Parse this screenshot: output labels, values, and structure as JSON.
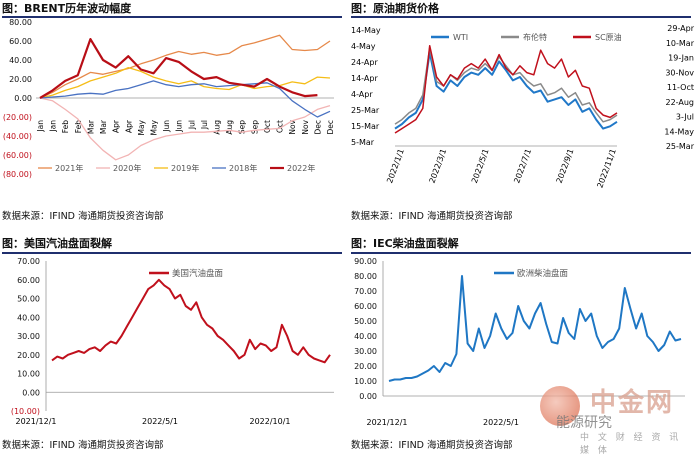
{
  "source_text": "数据来源：IFIND   海通期货投资咨询部",
  "watermark": {
    "big": "中金网",
    "cn": "能源研究",
    "small": "中 文 财 经 资 讯 媒 体"
  },
  "chart_data": [
    {
      "id": "brent",
      "type": "line",
      "title": "图：BRENT历年波动幅度",
      "ylim": [
        -80,
        80
      ],
      "yticks": [
        "80.00",
        "60.00",
        "40.00",
        "20.00",
        "0.00",
        "(20.00)",
        "(40.00)",
        "(60.00)",
        "(80.00)"
      ],
      "categories": [
        "Jan",
        "Jan",
        "Feb",
        "Feb",
        "Mar",
        "Mar",
        "Apr",
        "Apr",
        "May",
        "May",
        "Jun",
        "Jun",
        "Jul",
        "Jul",
        "Aug",
        "Aug",
        "Sep",
        "Sep",
        "Oct",
        "Oct",
        "Nov",
        "Nov",
        "Dec",
        "Dec"
      ],
      "legend": [
        "2021年",
        "2020年",
        "2019年",
        "2018年",
        "2022年"
      ],
      "series": [
        {
          "name": "2021年",
          "color": "#e6894a",
          "width": 1.3,
          "values": [
            0,
            6,
            14,
            20,
            27,
            25,
            28,
            31,
            36,
            40,
            45,
            49,
            46,
            48,
            45,
            47,
            55,
            58,
            62,
            66,
            51,
            50,
            51,
            60
          ]
        },
        {
          "name": "2020年",
          "color": "#f2b4b4",
          "width": 1.3,
          "values": [
            0,
            -3,
            -12,
            -22,
            -42,
            -55,
            -65,
            -60,
            -50,
            -44,
            -40,
            -38,
            -36,
            -36,
            -35,
            -34,
            -36,
            -34,
            -33,
            -32,
            -24,
            -20,
            -12,
            -8
          ]
        },
        {
          "name": "2019年",
          "color": "#f5bd17",
          "width": 1.3,
          "values": [
            0,
            3,
            8,
            12,
            18,
            22,
            26,
            32,
            28,
            22,
            18,
            15,
            18,
            12,
            10,
            9,
            14,
            10,
            12,
            13,
            17,
            15,
            22,
            21
          ]
        },
        {
          "name": "2018年",
          "color": "#4a72c2",
          "width": 1.3,
          "values": [
            0,
            1,
            2,
            4,
            5,
            4,
            8,
            10,
            14,
            18,
            14,
            12,
            14,
            15,
            12,
            13,
            14,
            15,
            16,
            10,
            -3,
            -12,
            -20,
            -14
          ]
        },
        {
          "name": "2022年",
          "color": "#b80e16",
          "width": 2.2,
          "values": [
            0,
            8,
            18,
            24,
            62,
            40,
            32,
            44,
            30,
            26,
            42,
            38,
            28,
            20,
            22,
            16,
            14,
            12,
            20,
            12,
            6,
            2,
            3,
            null
          ]
        }
      ]
    },
    {
      "id": "crude",
      "type": "line",
      "title": "图：原油期货价格",
      "left_ticks": [
        "14-May",
        "4-May",
        "24-Apr",
        "14-Apr",
        "4-Apr",
        "25-Mar",
        "15-Mar",
        "5-Mar"
      ],
      "right_ticks": [
        "29-Apr",
        "10-Mar",
        "19-Jan",
        "30-Nov",
        "11-Oct",
        "22-Aug",
        "3-Jul",
        "14-May",
        "25-Mar"
      ],
      "x_ticks": [
        "2022/1/1",
        "2022/3/1",
        "2022/5/1",
        "2022/7/1",
        "2022/9/1",
        "2022/11/1"
      ],
      "legend": [
        "WTI",
        "布伦特",
        "SC原油"
      ],
      "series": [
        {
          "name": "WTI",
          "color": "#2078c8",
          "width": 2,
          "values": [
            0.12,
            0.16,
            0.22,
            0.26,
            0.38,
            0.8,
            0.5,
            0.45,
            0.55,
            0.5,
            0.58,
            0.62,
            0.6,
            0.66,
            0.6,
            0.72,
            0.64,
            0.55,
            0.58,
            0.5,
            0.44,
            0.46,
            0.36,
            0.38,
            0.4,
            0.33,
            0.38,
            0.27,
            0.3,
            0.2,
            0.12,
            0.14,
            0.18
          ]
        },
        {
          "name": "布伦特",
          "color": "#8a8a8a",
          "width": 1.5,
          "values": [
            0.16,
            0.2,
            0.26,
            0.3,
            0.42,
            0.84,
            0.54,
            0.5,
            0.6,
            0.55,
            0.62,
            0.66,
            0.64,
            0.7,
            0.64,
            0.76,
            0.68,
            0.6,
            0.62,
            0.55,
            0.5,
            0.52,
            0.42,
            0.44,
            0.48,
            0.4,
            0.44,
            0.33,
            0.35,
            0.26,
            0.18,
            0.2,
            0.24
          ]
        },
        {
          "name": "SC原油",
          "color": "#c0101c",
          "width": 1.5,
          "values": [
            0.08,
            0.12,
            0.16,
            0.2,
            0.3,
            0.86,
            0.58,
            0.5,
            0.6,
            0.56,
            0.66,
            0.7,
            0.66,
            0.74,
            0.64,
            0.78,
            0.66,
            0.6,
            0.68,
            0.62,
            0.6,
            0.82,
            0.7,
            0.66,
            0.74,
            0.58,
            0.64,
            0.5,
            0.48,
            0.3,
            0.24,
            0.22,
            0.26
          ]
        }
      ]
    },
    {
      "id": "gasoline",
      "type": "line",
      "title": "图：美国汽油盘面裂解",
      "ylim": [
        -10,
        70
      ],
      "yticks": [
        "70.00",
        "60.00",
        "50.00",
        "40.00",
        "30.00",
        "20.00",
        "10.00",
        "0.00",
        "(10.00)"
      ],
      "x_ticks": [
        "2021/12/1",
        "2022/5/1",
        "2022/10/1"
      ],
      "legend": [
        "美国汽油盘面"
      ],
      "series": [
        {
          "name": "美国汽油盘面",
          "color": "#c0101c",
          "width": 2,
          "values": [
            17,
            19,
            18,
            20,
            21,
            22,
            21,
            23,
            24,
            22,
            25,
            27,
            26,
            30,
            35,
            40,
            45,
            50,
            55,
            57,
            60,
            57,
            55,
            50,
            52,
            46,
            44,
            48,
            40,
            36,
            34,
            30,
            28,
            25,
            22,
            18,
            20,
            28,
            23,
            26,
            25,
            22,
            24,
            36,
            30,
            22,
            20,
            24,
            20,
            18,
            17,
            16,
            20
          ]
        }
      ]
    },
    {
      "id": "diesel",
      "type": "line",
      "title": "图：IEC柴油盘面裂解",
      "ylim": [
        0,
        90
      ],
      "yticks": [
        "90.00",
        "80.00",
        "70.00",
        "60.00",
        "50.00",
        "40.00",
        "30.00",
        "20.00",
        "10.00",
        "0.00"
      ],
      "x_ticks": [
        "2021/12/1",
        "2022/5/1"
      ],
      "legend": [
        "欧洲柴油盘面"
      ],
      "series": [
        {
          "name": "欧洲柴油盘面",
          "color": "#1f77c4",
          "width": 2,
          "values": [
            10,
            11,
            11,
            12,
            12,
            13,
            15,
            17,
            20,
            16,
            22,
            20,
            28,
            80,
            35,
            30,
            45,
            32,
            40,
            55,
            45,
            38,
            42,
            60,
            50,
            45,
            55,
            62,
            48,
            36,
            35,
            52,
            42,
            38,
            58,
            50,
            55,
            40,
            32,
            36,
            38,
            45,
            72,
            58,
            45,
            55,
            40,
            36,
            30,
            34,
            43,
            37,
            38
          ]
        }
      ]
    }
  ]
}
